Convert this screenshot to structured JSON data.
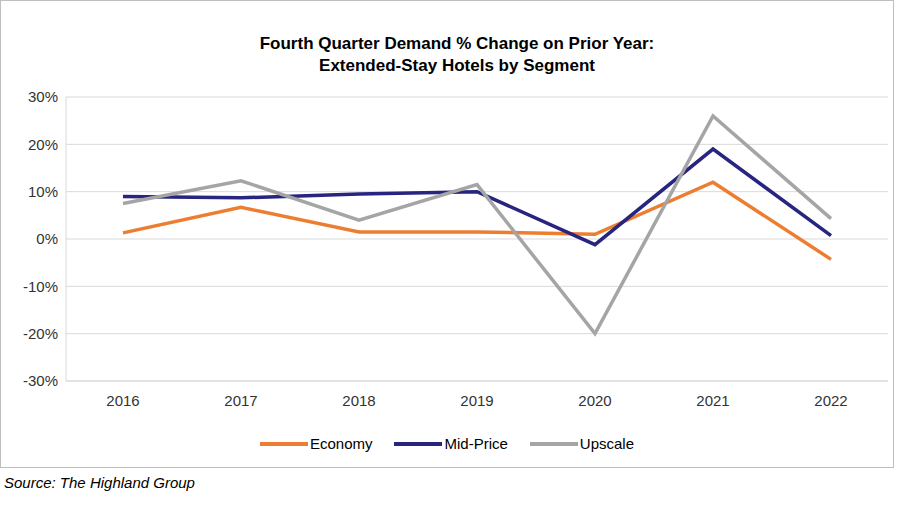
{
  "chart_data": {
    "type": "line",
    "title": "Fourth Quarter Demand % Change on Prior Year:\nExtended-Stay Hotels by Segment",
    "source": "Source: The Highland Group",
    "categories": [
      "2016",
      "2017",
      "2018",
      "2019",
      "2020",
      "2021",
      "2022"
    ],
    "series": [
      {
        "name": "Economy",
        "color": "#ED7D31",
        "values": [
          1.3,
          6.7,
          1.5,
          1.5,
          1.0,
          12.0,
          -4.3
        ]
      },
      {
        "name": "Mid-Price",
        "color": "#27257F",
        "values": [
          9.0,
          8.7,
          9.5,
          10.0,
          -1.2,
          19.0,
          0.7
        ]
      },
      {
        "name": "Upscale",
        "color": "#A5A5A5",
        "values": [
          7.5,
          12.3,
          4.0,
          11.5,
          -20.0,
          26.0,
          4.3
        ]
      }
    ],
    "ylim": [
      -30,
      30
    ],
    "yticks": [
      {
        "value": -30,
        "label": "-30%"
      },
      {
        "value": -20,
        "label": "-20%"
      },
      {
        "value": -10,
        "label": "-10%"
      },
      {
        "value": 0,
        "label": "0%"
      },
      {
        "value": 10,
        "label": "10%"
      },
      {
        "value": 20,
        "label": "20%"
      },
      {
        "value": 30,
        "label": "30%"
      }
    ],
    "grid": true,
    "legend": "bottom"
  }
}
